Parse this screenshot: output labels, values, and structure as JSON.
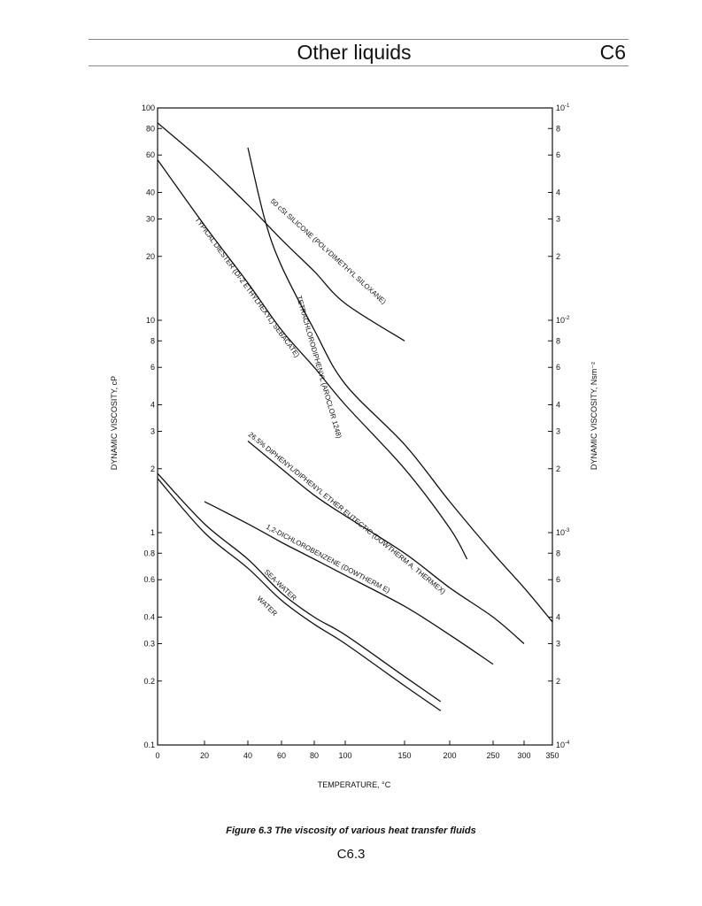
{
  "header": {
    "title": "Other liquids",
    "section": "C6"
  },
  "caption": "Figure 6.3 The viscosity of various heat transfer fluids",
  "page_number": "C6.3",
  "chart_data": {
    "type": "line",
    "title": "",
    "xlabel": "TEMPERATURE, °C",
    "ylabel": "DYNAMIC VISCOSITY, cP",
    "ylabel_right": "DYNAMIC VISCOSITY, Nsm⁻²",
    "xlim": [
      0,
      350
    ],
    "ylim": [
      0.1,
      100
    ],
    "y_scale": "log",
    "x_scale": "nonlinear",
    "grid": false,
    "x_ticks": [
      "0",
      "20",
      "40",
      "60",
      "80",
      "100",
      "150",
      "200",
      "250",
      "300",
      "350"
    ],
    "y_ticks_left": [
      "0.1",
      "0.2",
      "0.3",
      "0.4",
      "0.6",
      "0.8",
      "1",
      "2",
      "3",
      "4",
      "6",
      "8",
      "10",
      "20",
      "30",
      "40",
      "60",
      "80",
      "100"
    ],
    "y_ticks_right": [
      {
        "mant": "10",
        "exp": "-4"
      },
      {
        "mant": "2",
        "exp": ""
      },
      {
        "mant": "3",
        "exp": ""
      },
      {
        "mant": "4",
        "exp": ""
      },
      {
        "mant": "6",
        "exp": ""
      },
      {
        "mant": "8",
        "exp": ""
      },
      {
        "mant": "10",
        "exp": "-3"
      },
      {
        "mant": "2",
        "exp": ""
      },
      {
        "mant": "3",
        "exp": ""
      },
      {
        "mant": "4",
        "exp": ""
      },
      {
        "mant": "6",
        "exp": ""
      },
      {
        "mant": "8",
        "exp": ""
      },
      {
        "mant": "10",
        "exp": "-2"
      },
      {
        "mant": "2",
        "exp": ""
      },
      {
        "mant": "3",
        "exp": ""
      },
      {
        "mant": "4",
        "exp": ""
      },
      {
        "mant": "6",
        "exp": ""
      },
      {
        "mant": "8",
        "exp": ""
      },
      {
        "mant": "10",
        "exp": "-1"
      }
    ],
    "series": [
      {
        "name": "50 cSt SILICONE (POLYDIMETHYL SILOXANE)",
        "x": [
          0,
          20,
          40,
          60,
          80,
          100,
          150
        ],
        "y": [
          85,
          55,
          35,
          24,
          17,
          12,
          8
        ]
      },
      {
        "name": "TETRACHLORODIPHENYL (AROCLOR 1248)",
        "x": [
          40,
          50,
          60,
          80,
          100,
          150,
          200,
          250,
          300,
          350
        ],
        "y": [
          65,
          30,
          18,
          9,
          5,
          2.6,
          1.4,
          0.8,
          0.55,
          0.38
        ]
      },
      {
        "name": "TYPICAL DIESTER (DI-2 ETHYLHEXYL) SEBACATE)",
        "x": [
          0,
          20,
          40,
          60,
          80,
          100,
          150,
          200,
          220
        ],
        "y": [
          57,
          28,
          15,
          9,
          6,
          4,
          2,
          1.05,
          0.75
        ]
      },
      {
        "name": "26.5% DIPHENYL/DIPHENYL ETHER EUTECTIC (DOWTHERM A, THERMEX)",
        "x": [
          40,
          60,
          80,
          100,
          150,
          200,
          250,
          300
        ],
        "y": [
          2.7,
          2.0,
          1.5,
          1.2,
          0.8,
          0.55,
          0.4,
          0.3
        ]
      },
      {
        "name": "1,2-DICHLOROBENZENE (DOWTHERM E)",
        "x": [
          20,
          40,
          60,
          80,
          100,
          150,
          200,
          250
        ],
        "y": [
          1.4,
          1.1,
          0.9,
          0.75,
          0.63,
          0.45,
          0.33,
          0.24
        ]
      },
      {
        "name": "SEA-WATER",
        "x": [
          0,
          20,
          40,
          60,
          80,
          100,
          150,
          190
        ],
        "y": [
          1.9,
          1.1,
          0.75,
          0.52,
          0.4,
          0.33,
          0.21,
          0.16
        ]
      },
      {
        "name": "WATER",
        "x": [
          0,
          20,
          40,
          60,
          80,
          100,
          150,
          190
        ],
        "y": [
          1.8,
          1.0,
          0.68,
          0.48,
          0.37,
          0.3,
          0.19,
          0.145
        ]
      }
    ]
  }
}
